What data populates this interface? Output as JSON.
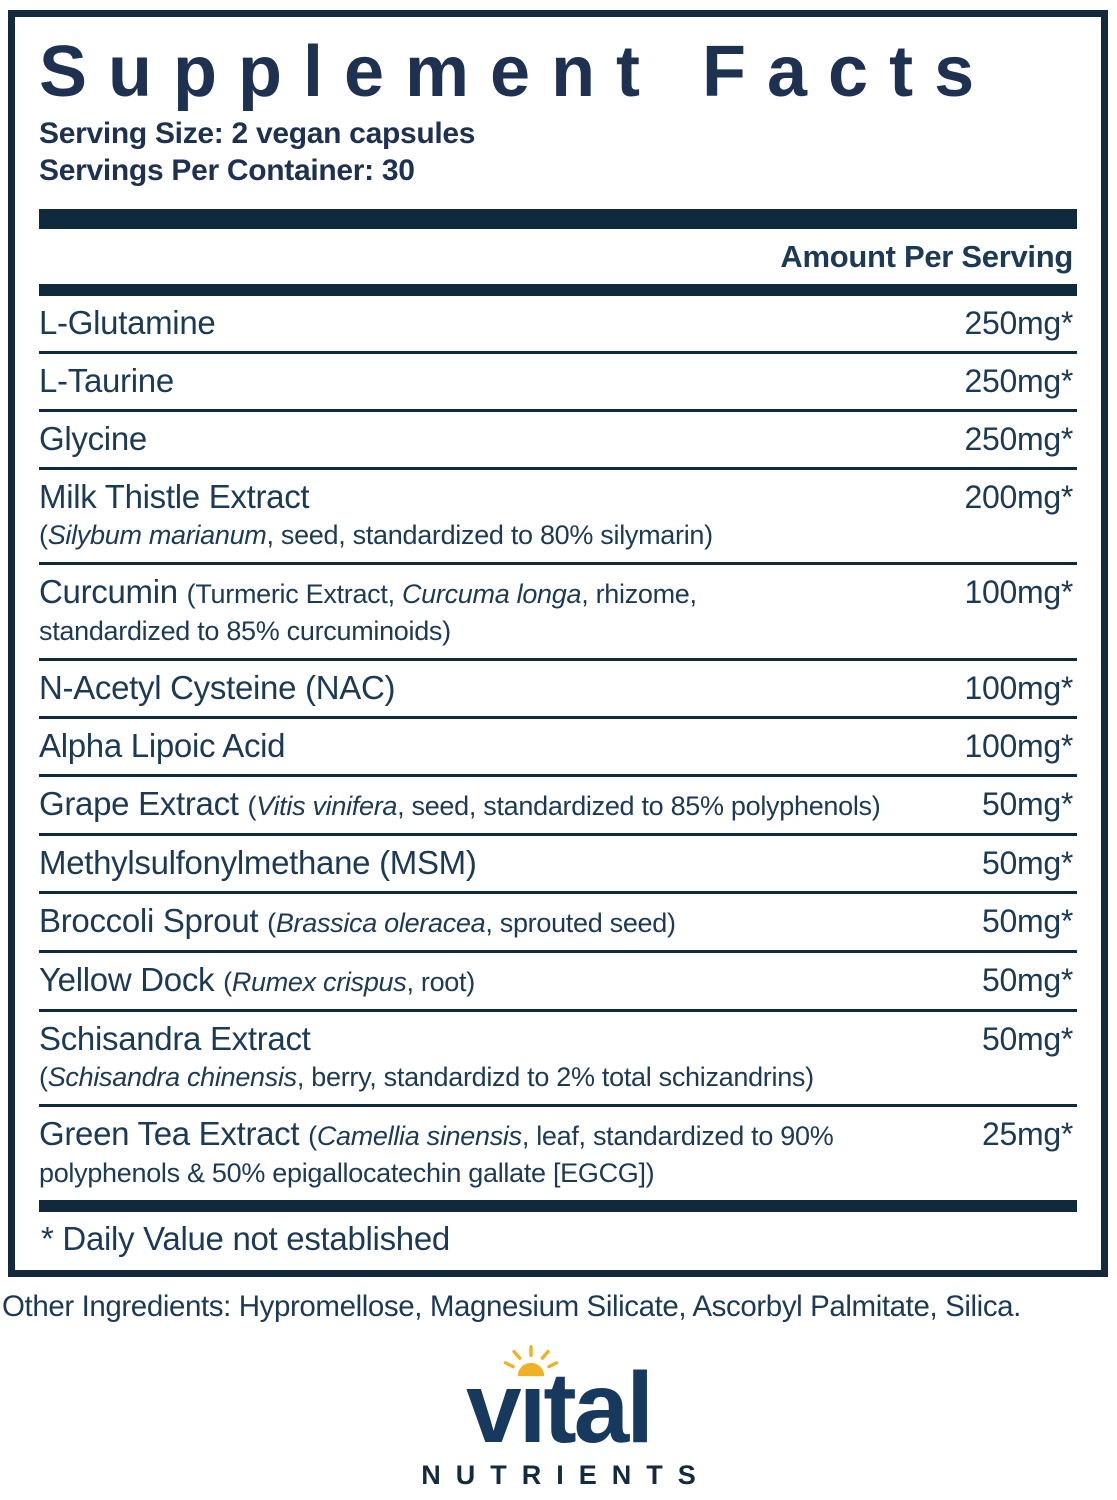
{
  "colors": {
    "navy_bar": "#10293d",
    "navy_frame": "#14293c",
    "navy_text": "#1d3a54",
    "navy_title": "#1e3150",
    "logo_navy": "#17395d",
    "sun_gold": "#f0b125",
    "background": "#ffffff"
  },
  "label": {
    "title": "Supplement Facts",
    "serving_size": "Serving Size: 2 vegan capsules",
    "servings_per_container": "Servings Per Container: 30",
    "amount_header": "Amount Per Serving",
    "footnote": "* Daily Value not established",
    "other_ingredients": "Other Ingredients: Hypromellose, Magnesium Silicate, Ascorbyl Palmitate, Silica."
  },
  "rows": [
    {
      "amount": "250mg*",
      "parts": [
        {
          "kind": "name",
          "text": "L-Glutamine"
        }
      ]
    },
    {
      "amount": "250mg*",
      "parts": [
        {
          "kind": "name",
          "text": "L-Taurine"
        }
      ]
    },
    {
      "amount": "250mg*",
      "parts": [
        {
          "kind": "name",
          "text": "Glycine"
        }
      ]
    },
    {
      "amount": "200mg*",
      "parts": [
        {
          "kind": "name",
          "text": "Milk Thistle Extract"
        },
        {
          "kind": "br"
        },
        {
          "kind": "desc",
          "text": "("
        },
        {
          "kind": "italic",
          "text": "Silybum marianum"
        },
        {
          "kind": "desc",
          "text": ", seed, standardized to 80% silymarin)"
        }
      ]
    },
    {
      "amount": "100mg*",
      "parts": [
        {
          "kind": "name",
          "text": "Curcumin "
        },
        {
          "kind": "desc",
          "text": "(Turmeric Extract, "
        },
        {
          "kind": "italic",
          "text": "Curcuma longa"
        },
        {
          "kind": "desc",
          "text": ", rhizome,"
        },
        {
          "kind": "br"
        },
        {
          "kind": "desc",
          "text": "standardized to 85% curcuminoids)"
        }
      ]
    },
    {
      "amount": "100mg*",
      "parts": [
        {
          "kind": "name",
          "text": "N-Acetyl Cysteine (NAC)"
        }
      ]
    },
    {
      "amount": "100mg*",
      "parts": [
        {
          "kind": "name",
          "text": "Alpha Lipoic Acid"
        }
      ]
    },
    {
      "amount": "50mg*",
      "parts": [
        {
          "kind": "name",
          "text": "Grape Extract "
        },
        {
          "kind": "desc",
          "text": "("
        },
        {
          "kind": "italic",
          "text": "Vitis vinifera"
        },
        {
          "kind": "desc",
          "text": ", seed, standardized to 85% polyphenols)"
        }
      ]
    },
    {
      "amount": "50mg*",
      "parts": [
        {
          "kind": "name",
          "text": "Methylsulfonylmethane (MSM)"
        }
      ]
    },
    {
      "amount": "50mg*",
      "parts": [
        {
          "kind": "name",
          "text": "Broccoli Sprout "
        },
        {
          "kind": "desc",
          "text": "("
        },
        {
          "kind": "italic",
          "text": "Brassica oleracea"
        },
        {
          "kind": "desc",
          "text": ", sprouted seed)"
        }
      ]
    },
    {
      "amount": "50mg*",
      "parts": [
        {
          "kind": "name",
          "text": "Yellow Dock "
        },
        {
          "kind": "desc",
          "text": "("
        },
        {
          "kind": "italic",
          "text": "Rumex crispus"
        },
        {
          "kind": "desc",
          "text": ", root)"
        }
      ]
    },
    {
      "amount": "50mg*",
      "parts": [
        {
          "kind": "name",
          "text": "Schisandra Extract"
        },
        {
          "kind": "br"
        },
        {
          "kind": "desc",
          "text": "("
        },
        {
          "kind": "italic",
          "text": "Schisandra chinensis"
        },
        {
          "kind": "desc",
          "text": ", berry, standardizd to 2% total schizandrins)"
        }
      ]
    },
    {
      "amount": "25mg*",
      "parts": [
        {
          "kind": "name",
          "text": "Green Tea Extract "
        },
        {
          "kind": "desc",
          "text": "("
        },
        {
          "kind": "italic",
          "text": "Camellia sinensis"
        },
        {
          "kind": "desc",
          "text": ", leaf, standardized to 90%"
        },
        {
          "kind": "br"
        },
        {
          "kind": "desc",
          "text": "polyphenols & 50% epigallocatechin gallate [EGCG])"
        }
      ]
    }
  ],
  "logo": {
    "left": "v",
    "i_dotless": "ı",
    "right": "tal",
    "subtext": "NUTRIENTS",
    "sun_icon": "sun-icon",
    "sun_color": "#f0b125"
  }
}
